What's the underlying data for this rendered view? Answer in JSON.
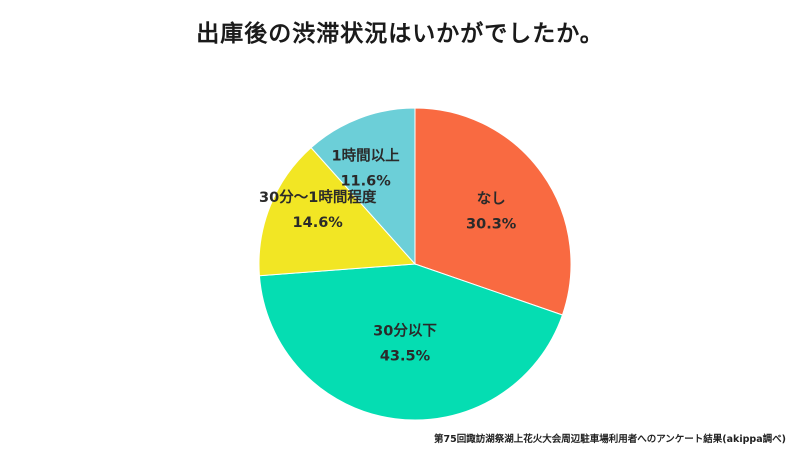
{
  "chart_data": {
    "type": "pie",
    "title": "出庫後の渋滞状況はいかがでしたか。",
    "slices": [
      {
        "label": "なし",
        "value": 30.3,
        "display": "30.3%",
        "color": "#f96a41"
      },
      {
        "label": "30分以下",
        "value": 43.5,
        "display": "43.5%",
        "color": "#05ddb2"
      },
      {
        "label": "30分〜1時間程度",
        "value": 14.6,
        "display": "14.6%",
        "color": "#f2e624"
      },
      {
        "label": "1時間以上",
        "value": 11.6,
        "display": "11.6%",
        "color": "#6ccfd8"
      }
    ],
    "start": "12 o'clock",
    "direction": "clockwise"
  },
  "source_note": "第75回諏訪湖祭湖上花火大会周辺駐車場利用者へのアンケート結果(akippa調べ)"
}
